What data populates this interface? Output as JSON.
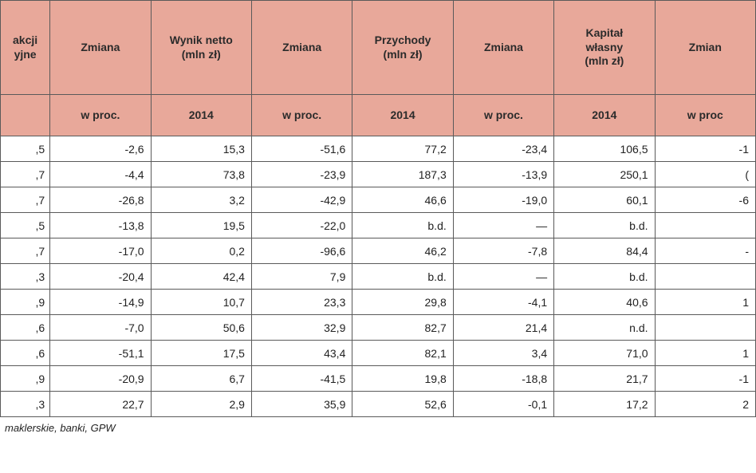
{
  "colors": {
    "header_bg": "#e8a89a",
    "border": "#5a5a5a",
    "cell_bg": "#ffffff",
    "text": "#222222"
  },
  "fonts": {
    "base_size": 14,
    "family": "Verdana, Arial, sans-serif"
  },
  "table": {
    "type": "table",
    "columns_top": [
      "akcji\n yjne",
      "Zmiana",
      "Wynik netto\n(mln zł)",
      "Zmiana",
      "Przychody\n(mln zł)",
      "Zmiana",
      "Kapitał\nwłasny\n(mln zł)",
      "Zmian"
    ],
    "columns_sub": [
      "",
      "w proc.",
      "2014",
      "w proc.",
      "2014",
      "w proc.",
      "2014",
      "w proc"
    ],
    "col_align": [
      "right",
      "right",
      "right",
      "right",
      "right",
      "right",
      "right",
      "right"
    ],
    "rows": [
      [
        ",5",
        "-2,6",
        "15,3",
        "-51,6",
        "77,2",
        "-23,4",
        "106,5",
        "-1"
      ],
      [
        ",7",
        "-4,4",
        "73,8",
        "-23,9",
        "187,3",
        "-13,9",
        "250,1",
        "("
      ],
      [
        ",7",
        "-26,8",
        "3,2",
        "-42,9",
        "46,6",
        "-19,0",
        "60,1",
        "-6"
      ],
      [
        ",5",
        "-13,8",
        "19,5",
        "-22,0",
        "b.d.",
        "—",
        "b.d.",
        ""
      ],
      [
        ",7",
        "-17,0",
        "0,2",
        "-96,6",
        "46,2",
        "-7,8",
        "84,4",
        "-"
      ],
      [
        ",3",
        "-20,4",
        "42,4",
        "7,9",
        "b.d.",
        "—",
        "b.d.",
        ""
      ],
      [
        ",9",
        "-14,9",
        "10,7",
        "23,3",
        "29,8",
        "-4,1",
        "40,6",
        "1"
      ],
      [
        ",6",
        "-7,0",
        "50,6",
        "32,9",
        "82,7",
        "21,4",
        "n.d.",
        ""
      ],
      [
        ",6",
        "-51,1",
        "17,5",
        "43,4",
        "82,1",
        "3,4",
        "71,0",
        "1"
      ],
      [
        ",9",
        "-20,9",
        "6,7",
        "-41,5",
        "19,8",
        "-18,8",
        "21,7",
        "-1"
      ],
      [
        ",3",
        "22,7",
        "2,9",
        "35,9",
        "52,6",
        "-0,1",
        "17,2",
        "2"
      ]
    ]
  },
  "footnote": "maklerskie, banki, GPW"
}
